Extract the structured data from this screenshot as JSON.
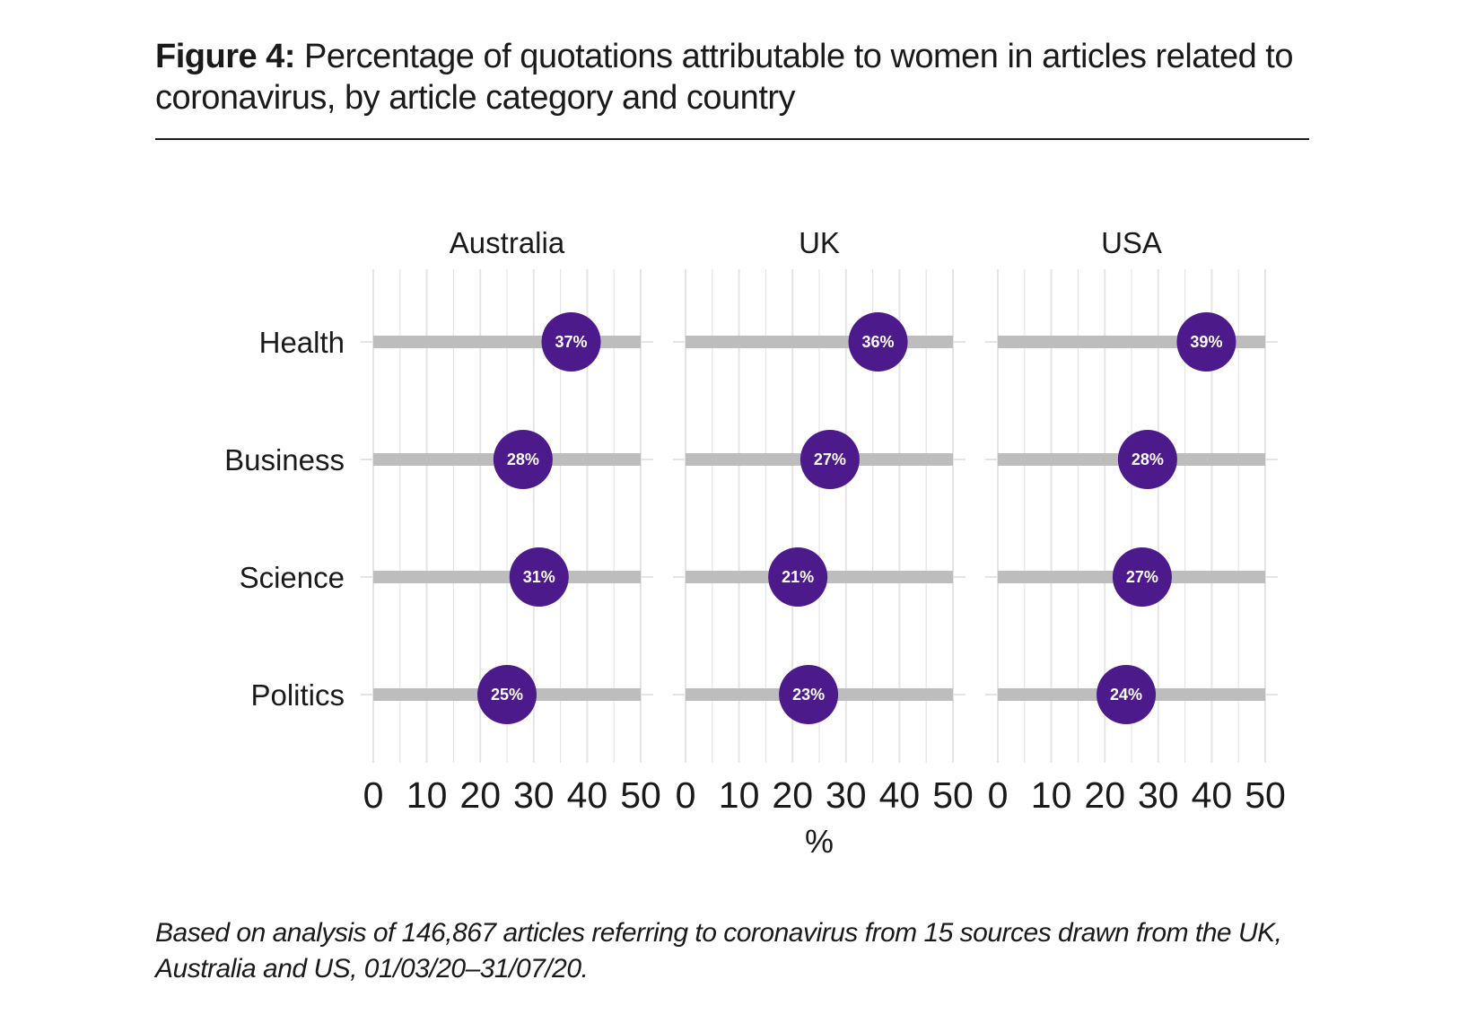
{
  "figure": {
    "label": "Figure 4:",
    "title": "Percentage of quotations attributable to women in articles related to coronavirus, by article category and country"
  },
  "footnote": "Based on analysis of 146,867 articles referring to coronavirus from 15 sources drawn from the UK, Australia and US, 01/03/20–31/07/20.",
  "colors": {
    "dot": "#4d1a8c",
    "bar": "#bdbdbd",
    "grid": "#e4e4e4",
    "text": "#1a1a1a"
  },
  "chart_data": {
    "type": "dot",
    "title": "Percentage of quotations attributable to women in articles related to coronavirus, by article category and country",
    "xlabel": "%",
    "ylabel": "",
    "xlim": [
      0,
      50
    ],
    "xticks": [
      0,
      10,
      20,
      30,
      40,
      50
    ],
    "categories": [
      "Health",
      "Business",
      "Science",
      "Politics"
    ],
    "panels": [
      {
        "name": "Australia",
        "values": [
          37,
          28,
          31,
          25
        ],
        "labels": [
          "37%",
          "28%",
          "31%",
          "25%"
        ]
      },
      {
        "name": "UK",
        "values": [
          36,
          27,
          21,
          23
        ],
        "labels": [
          "36%",
          "27%",
          "21%",
          "23%"
        ]
      },
      {
        "name": "USA",
        "values": [
          39,
          28,
          27,
          24
        ],
        "labels": [
          "39%",
          "28%",
          "27%",
          "24%"
        ]
      }
    ],
    "grid": true,
    "legend": "none"
  }
}
